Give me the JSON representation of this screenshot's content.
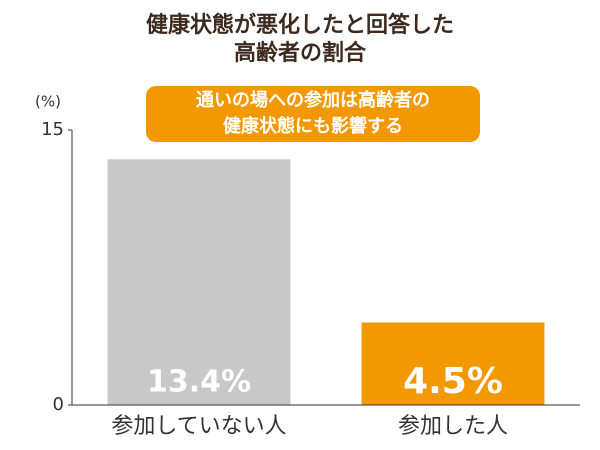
{
  "chart_data": {
    "type": "bar",
    "title": [
      "健康状態が悪化したと回答した",
      "高齢者の割合"
    ],
    "unit_label": "(%)",
    "annotation": [
      "通いの場への参加は高齢者の",
      "健康状態にも影響する"
    ],
    "categories": [
      "参加していない人",
      "参加した人"
    ],
    "values": [
      13.4,
      4.5
    ],
    "value_labels": [
      "13.4%",
      "4.5%"
    ],
    "colors": [
      "#c8c8c8",
      "#f39800"
    ],
    "ylim": [
      0,
      15
    ],
    "yticks": [
      0,
      15
    ],
    "grid": false
  }
}
